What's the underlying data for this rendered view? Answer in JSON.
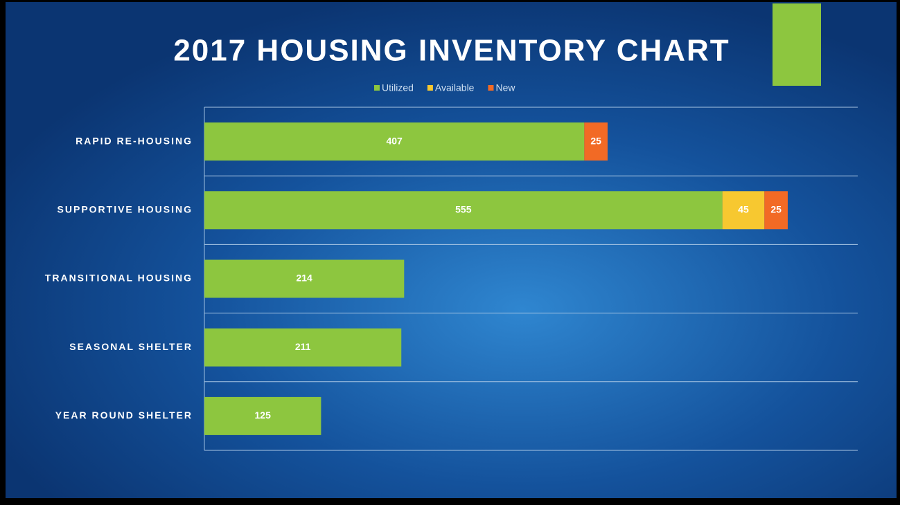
{
  "chart_data": {
    "type": "bar",
    "orientation": "horizontal",
    "stacked": true,
    "title": "2017 HOUSING INVENTORY CHART",
    "categories": [
      "RAPID RE-HOUSING",
      "SUPPORTIVE HOUSING",
      "TRANSITIONAL HOUSING",
      "SEASONAL SHELTER",
      "YEAR ROUND SHELTER"
    ],
    "series": [
      {
        "name": "Utilized",
        "color": "#8dc63f",
        "values": [
          407,
          555,
          214,
          211,
          125
        ]
      },
      {
        "name": "Available",
        "color": "#f7c830",
        "values": [
          null,
          45,
          null,
          null,
          null
        ]
      },
      {
        "name": "New",
        "color": "#f26a25",
        "values": [
          25,
          25,
          null,
          null,
          null
        ]
      }
    ],
    "xlim": [
      0,
      700
    ],
    "legend": "top"
  }
}
